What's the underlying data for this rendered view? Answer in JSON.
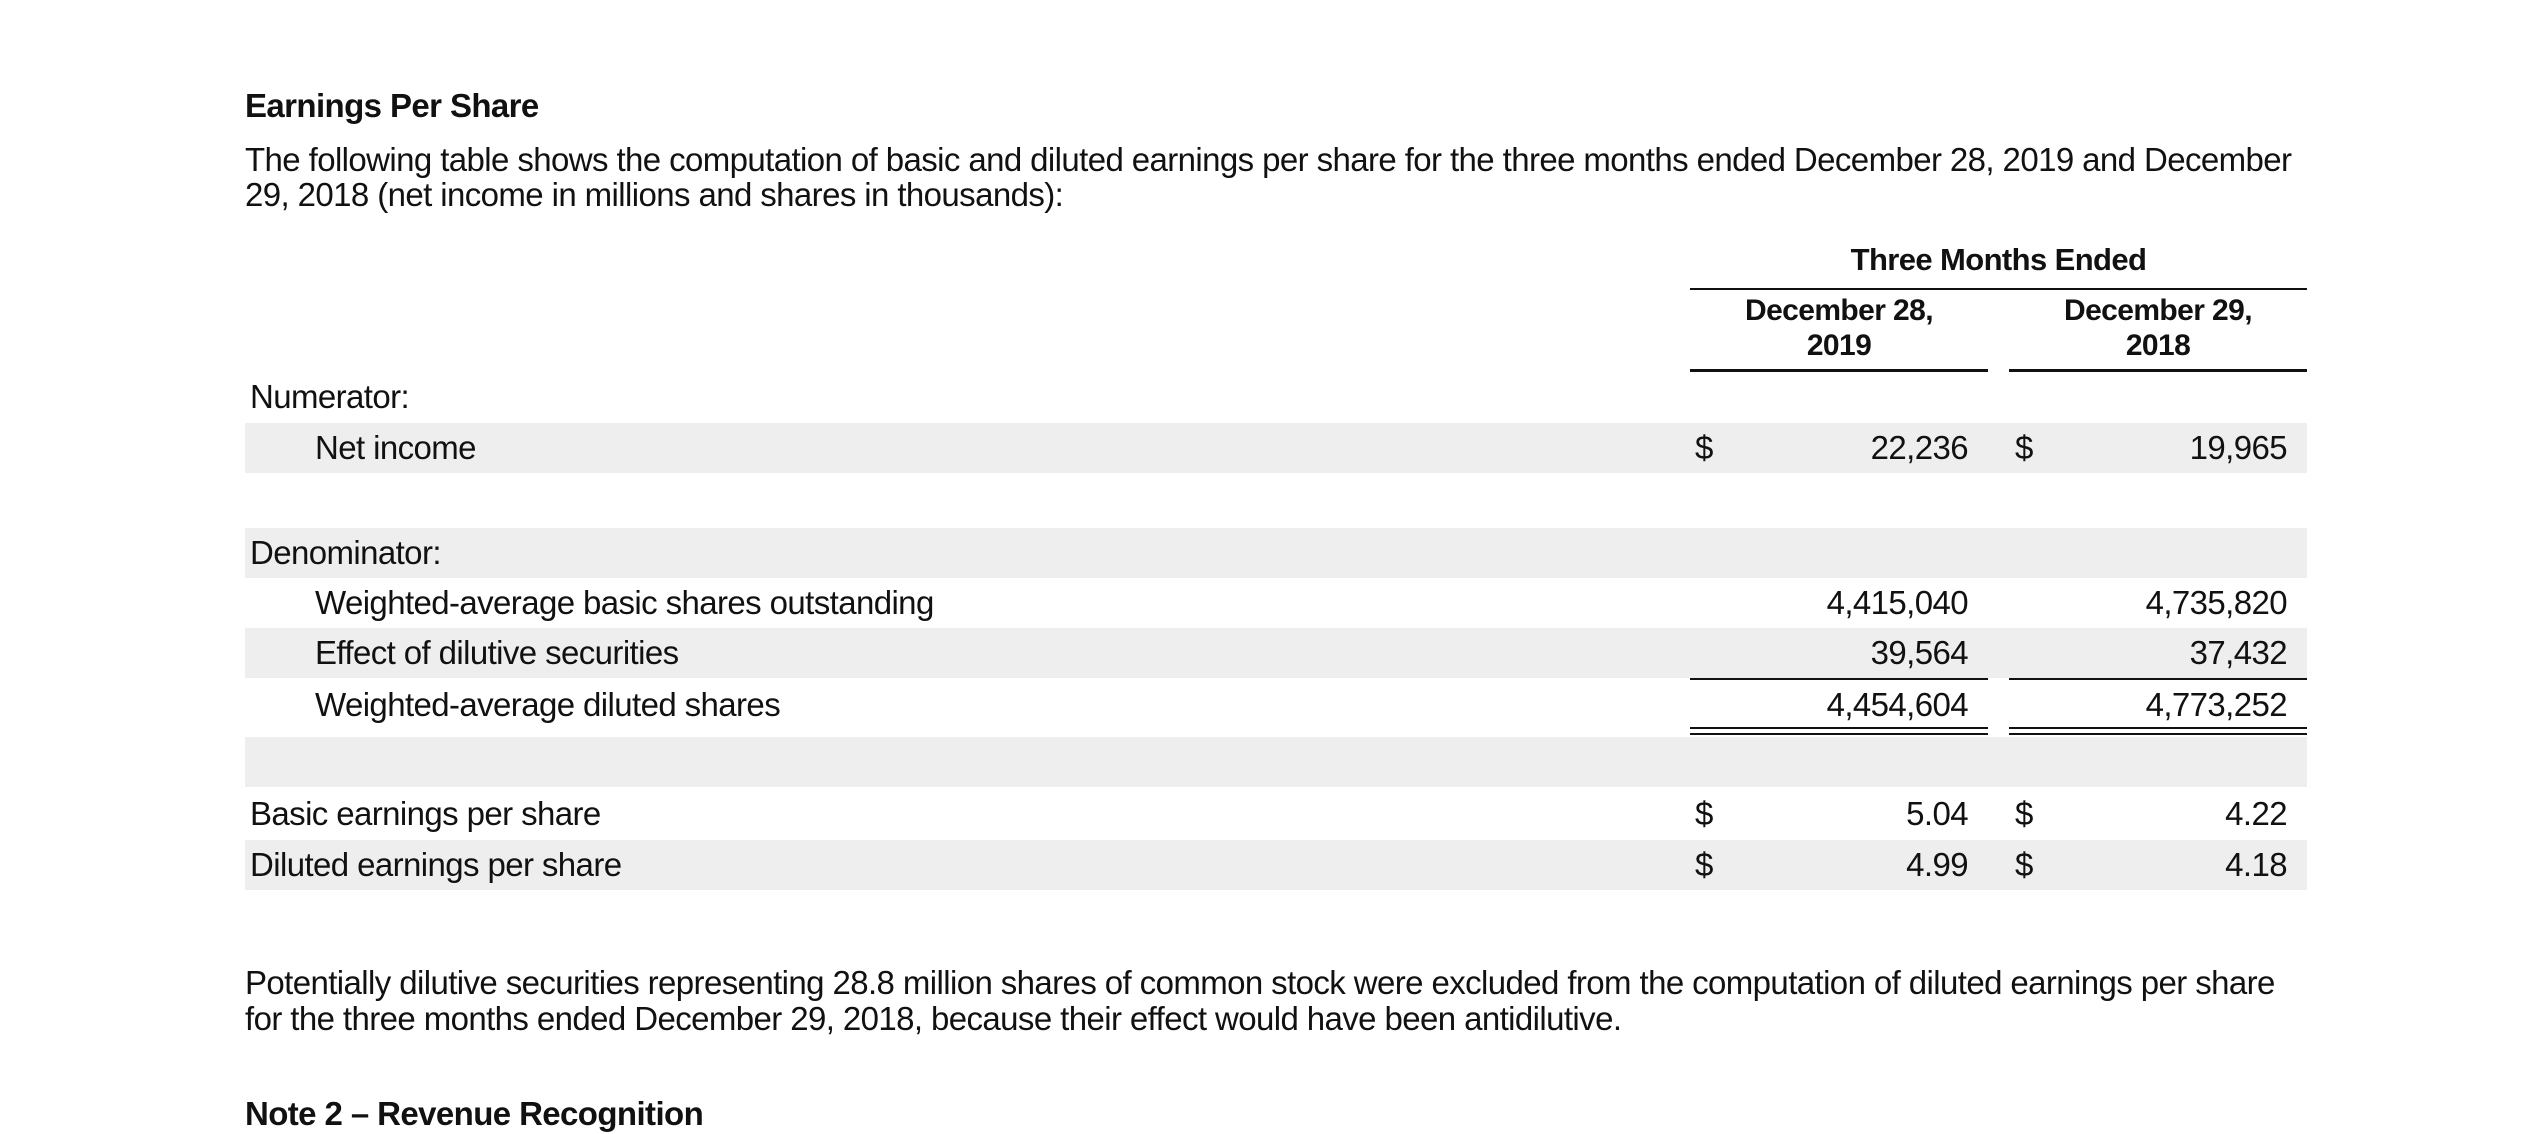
{
  "heading": "Earnings Per Share",
  "intro": "The following table shows the computation of basic and diluted earnings per share for the three months ended December 28, 2019 and December 29, 2018 (net income in millions and shares in thousands):",
  "table": {
    "group_header": "Three Months Ended",
    "col1_header_line1": "December 28,",
    "col1_header_line2": "2019",
    "col2_header_line1": "December 29,",
    "col2_header_line2": "2018",
    "currency": "$",
    "numerator_label": "Numerator:",
    "net_income": {
      "label": "Net income",
      "v2019": "22,236",
      "v2018": "19,965"
    },
    "denominator_label": "Denominator:",
    "basic_shares": {
      "label": "Weighted-average basic shares outstanding",
      "v2019": "4,415,040",
      "v2018": "4,735,820"
    },
    "dilutive_effect": {
      "label": "Effect of dilutive securities",
      "v2019": "39,564",
      "v2018": "37,432"
    },
    "diluted_shares": {
      "label": "Weighted-average diluted shares",
      "v2019": "4,454,604",
      "v2018": "4,773,252"
    },
    "basic_eps": {
      "label": "Basic earnings per share",
      "v2019": "5.04",
      "v2018": "4.22"
    },
    "diluted_eps": {
      "label": "Diluted earnings per share",
      "v2019": "4.99",
      "v2018": "4.18"
    }
  },
  "footnote": "Potentially dilutive securities representing 28.8 million shares of common stock were excluded from the computation of diluted earnings per share for the three months ended December 29, 2018, because their effect would have been antidilutive.",
  "next_heading": "Note 2 – Revenue Recognition"
}
